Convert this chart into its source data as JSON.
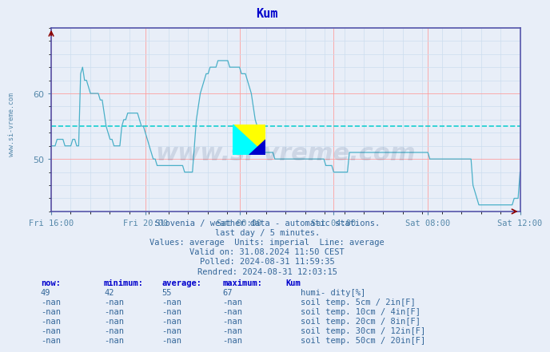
{
  "title": "Kum",
  "title_color": "#0000cc",
  "bg_color": "#e8eef8",
  "plot_bg_color": "#e8eef8",
  "line_color": "#4ab0c8",
  "average_line_color": "#00cccc",
  "average_line_value": 55,
  "grid_color_major": "#ff9999",
  "grid_color_minor": "#ccddee",
  "axis_color": "#5555aa",
  "tick_color": "#5588aa",
  "text_color": "#336699",
  "watermark": "www.si-vreme.com",
  "watermark_color": "#1a3a6a",
  "watermark_alpha": 0.13,
  "info_lines": [
    "Slovenia / weather data - automatic stations.",
    "last day / 5 minutes.",
    "Values: average  Units: imperial  Line: average",
    "Valid on: 31.08.2024 11:50 CEST",
    "Polled: 2024-08-31 11:59:35",
    "Rendred: 2024-08-31 12:03:15"
  ],
  "table_headers": [
    "now:",
    "minimum:",
    "average:",
    "maximum:",
    "Kum"
  ],
  "table_data": [
    [
      "49",
      "42",
      "55",
      "67",
      "humi- dity[%]",
      "#5ab0c8"
    ],
    [
      "-nan",
      "-nan",
      "-nan",
      "-nan",
      "soil temp. 5cm / 2in[F]",
      "#d4a0a0"
    ],
    [
      "-nan",
      "-nan",
      "-nan",
      "-nan",
      "soil temp. 10cm / 4in[F]",
      "#cc8833"
    ],
    [
      "-nan",
      "-nan",
      "-nan",
      "-nan",
      "soil temp. 20cm / 8in[F]",
      "#bb7722"
    ],
    [
      "-nan",
      "-nan",
      "-nan",
      "-nan",
      "soil temp. 30cm / 12in[F]",
      "#887755"
    ],
    [
      "-nan",
      "-nan",
      "-nan",
      "-nan",
      "soil temp. 50cm / 20in[F]",
      "#994411"
    ]
  ],
  "xticklabels": [
    "Fri 16:00",
    "Fri 20:00",
    "Sat 00:00",
    "Sat 04:00",
    "Sat 08:00",
    "Sat 12:00"
  ],
  "xtick_positions": [
    0,
    48,
    96,
    144,
    192,
    239
  ],
  "yticks": [
    50,
    60
  ],
  "ylim": [
    42,
    70
  ],
  "xlim": [
    0,
    239
  ],
  "ylabel_text": "www.si-vreme.com",
  "humidity_data": [
    52,
    52,
    52,
    53,
    53,
    53,
    53,
    52,
    52,
    52,
    52,
    53,
    53,
    52,
    52,
    63,
    64,
    62,
    62,
    61,
    60,
    60,
    60,
    60,
    60,
    59,
    59,
    57,
    55,
    54,
    53,
    53,
    52,
    52,
    52,
    52,
    55,
    56,
    56,
    57,
    57,
    57,
    57,
    57,
    57,
    56,
    55,
    55,
    54,
    53,
    52,
    51,
    50,
    50,
    49,
    49,
    49,
    49,
    49,
    49,
    49,
    49,
    49,
    49,
    49,
    49,
    49,
    49,
    48,
    48,
    48,
    48,
    48,
    52,
    56,
    58,
    60,
    61,
    62,
    63,
    63,
    64,
    64,
    64,
    64,
    65,
    65,
    65,
    65,
    65,
    65,
    64,
    64,
    64,
    64,
    64,
    64,
    63,
    63,
    63,
    62,
    61,
    60,
    58,
    56,
    55,
    53,
    52,
    52,
    51,
    51,
    51,
    51,
    51,
    50,
    50,
    50,
    50,
    50,
    50,
    50,
    50,
    50,
    50,
    50,
    50,
    50,
    50,
    50,
    50,
    50,
    50,
    50,
    50,
    50,
    50,
    50,
    50,
    50,
    50,
    49,
    49,
    49,
    49,
    48,
    48,
    48,
    48,
    48,
    48,
    48,
    48,
    51,
    51,
    51,
    51,
    51,
    51,
    51,
    51,
    51,
    51,
    51,
    51,
    51,
    51,
    51,
    51,
    51,
    51,
    51,
    51,
    51,
    51,
    51,
    51,
    51,
    51,
    51,
    51,
    51,
    51,
    51,
    51,
    51,
    51,
    51,
    51,
    51,
    51,
    51,
    51,
    51,
    50,
    50,
    50,
    50,
    50,
    50,
    50,
    50,
    50,
    50,
    50,
    50,
    50,
    50,
    50,
    50,
    50,
    50,
    50,
    50,
    50,
    50,
    46,
    45,
    44,
    43,
    43,
    43,
    43,
    43,
    43,
    43,
    43,
    43,
    43,
    43,
    43,
    43,
    43,
    43,
    43,
    43,
    43,
    44,
    44,
    44,
    48
  ]
}
